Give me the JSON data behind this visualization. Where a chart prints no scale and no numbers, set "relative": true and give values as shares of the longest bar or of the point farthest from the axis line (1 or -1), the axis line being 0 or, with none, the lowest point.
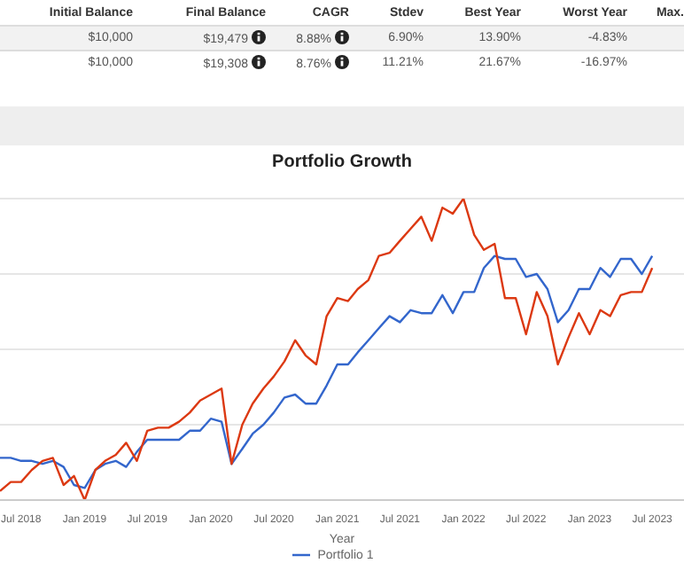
{
  "chart_data": [
    {
      "type": "other",
      "categories": [
        "Initial Balance",
        "Final Balance",
        "CAGR",
        "Stdev",
        "Best Year",
        "Worst Year",
        "Max."
      ],
      "cell_labels": [
        [
          "$10,000",
          "$19,479",
          "8.88%",
          "6.90%",
          "13.90%",
          "-4.83%",
          null
        ],
        [
          "$10,000",
          "$19,308",
          "8.76%",
          "11.21%",
          "21.67%",
          "-16.97%",
          null
        ]
      ]
    },
    {
      "type": "line",
      "title": "Portfolio Growth",
      "xlabel": "Year",
      "relative": true,
      "grid": "y",
      "legend": "bottom",
      "marker": "none",
      "line_style": "solid",
      "x": [
        "2018-05",
        "2018-06",
        "2018-07",
        "2018-08",
        "2018-09",
        "2018-10",
        "2018-11",
        "2018-12",
        "2019-01",
        "2019-02",
        "2019-03",
        "2019-04",
        "2019-05",
        "2019-06",
        "2019-07",
        "2019-08",
        "2019-09",
        "2019-10",
        "2019-11",
        "2019-12",
        "2020-01",
        "2020-02",
        "2020-03",
        "2020-04",
        "2020-05",
        "2020-06",
        "2020-07",
        "2020-08",
        "2020-09",
        "2020-10",
        "2020-11",
        "2020-12",
        "2021-01",
        "2021-02",
        "2021-03",
        "2021-04",
        "2021-05",
        "2021-06",
        "2021-07",
        "2021-08",
        "2021-09",
        "2021-10",
        "2021-11",
        "2021-12",
        "2022-01",
        "2022-02",
        "2022-03",
        "2022-04",
        "2022-05",
        "2022-06",
        "2022-07",
        "2022-08",
        "2022-09",
        "2022-10",
        "2022-11",
        "2022-12",
        "2023-01",
        "2023-02",
        "2023-03",
        "2023-04",
        "2023-05",
        "2023-06",
        "2023-07"
      ],
      "xlim": [
        "2018-05",
        "2023-10"
      ],
      "xticks": [
        {
          "value": "2018-07",
          "label": "Jul 2018"
        },
        {
          "value": "2019-01",
          "label": "Jan 2019"
        },
        {
          "value": "2019-07",
          "label": "Jul 2019"
        },
        {
          "value": "2020-01",
          "label": "Jan 2020"
        },
        {
          "value": "2020-07",
          "label": "Jul 2020"
        },
        {
          "value": "2021-01",
          "label": "Jan 2021"
        },
        {
          "value": "2021-07",
          "label": "Jul 2021"
        },
        {
          "value": "2022-01",
          "label": "Jan 2022"
        },
        {
          "value": "2022-07",
          "label": "Jul 2022"
        },
        {
          "value": "2023-01",
          "label": "Jan 2023"
        },
        {
          "value": "2023-07",
          "label": "Jul 2023"
        }
      ],
      "series": [
        {
          "name": "Portfolio 1",
          "color": "#3366cc",
          "values": [
            0.14,
            0.14,
            0.13,
            0.13,
            0.12,
            0.13,
            0.11,
            0.05,
            0.04,
            0.1,
            0.12,
            0.13,
            0.11,
            0.16,
            0.2,
            0.2,
            0.2,
            0.2,
            0.23,
            0.23,
            0.27,
            0.26,
            0.12,
            0.17,
            0.22,
            0.25,
            0.29,
            0.34,
            0.35,
            0.32,
            0.32,
            0.38,
            0.45,
            0.45,
            0.49,
            0.53,
            0.57,
            0.61,
            0.59,
            0.63,
            0.62,
            0.62,
            0.68,
            0.62,
            0.69,
            0.69,
            0.77,
            0.81,
            0.8,
            0.8,
            0.74,
            0.75,
            0.7,
            0.59,
            0.63,
            0.7,
            0.7,
            0.77,
            0.74,
            0.8,
            0.8,
            0.75,
            0.81
          ]
        },
        {
          "color": "#dc3912",
          "values": [
            0.03,
            0.06,
            0.06,
            0.1,
            0.13,
            0.14,
            0.05,
            0.08,
            0,
            0.1,
            0.13,
            0.15,
            0.19,
            0.13,
            0.23,
            0.24,
            0.24,
            0.26,
            0.29,
            0.33,
            0.35,
            0.37,
            0.12,
            0.25,
            0.32,
            0.37,
            0.41,
            0.46,
            0.53,
            0.48,
            0.45,
            0.61,
            0.67,
            0.66,
            0.7,
            0.73,
            0.81,
            0.82,
            0.86,
            0.9,
            0.94,
            0.86,
            0.97,
            0.95,
            1,
            0.88,
            0.83,
            0.85,
            0.67,
            0.67,
            0.55,
            0.69,
            0.61,
            0.45,
            0.54,
            0.62,
            0.55,
            0.63,
            0.61,
            0.68,
            0.69,
            0.69,
            0.77
          ]
        }
      ]
    }
  ]
}
